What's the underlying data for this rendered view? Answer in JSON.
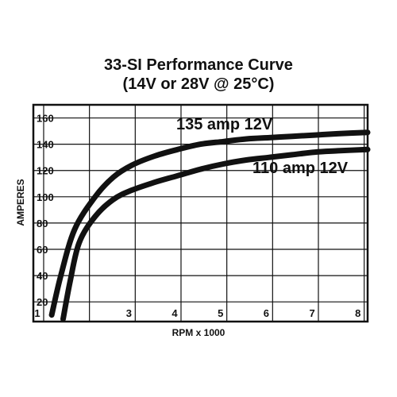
{
  "chart_data": {
    "type": "line",
    "title": "33-SI Performance Curve",
    "subtitle": "(14V or 28V @ 25°C)",
    "xlabel": "RPM x 1000",
    "ylabel": "AMPERES",
    "xlim": [
      0.85,
      8.15
    ],
    "ylim": [
      5,
      170
    ],
    "x_ticks": [
      1,
      3,
      4,
      5,
      6,
      7,
      8
    ],
    "y_ticks": [
      20,
      40,
      60,
      80,
      100,
      120,
      140,
      160
    ],
    "grid": true,
    "series_color": "#111111",
    "series": [
      {
        "name": "135 amp 12V",
        "points": [
          [
            1.25,
            10
          ],
          [
            1.45,
            40
          ],
          [
            1.75,
            75
          ],
          [
            2.2,
            100
          ],
          [
            2.6,
            115
          ],
          [
            3.0,
            124
          ],
          [
            3.5,
            131
          ],
          [
            4.0,
            136
          ],
          [
            4.5,
            140
          ],
          [
            5.0,
            142
          ],
          [
            5.5,
            144
          ],
          [
            6.0,
            145
          ],
          [
            6.5,
            146
          ],
          [
            7.0,
            147
          ],
          [
            7.5,
            148
          ],
          [
            8.15,
            149
          ]
        ]
      },
      {
        "name": "110 amp 12V",
        "points": [
          [
            1.5,
            7
          ],
          [
            1.65,
            35
          ],
          [
            1.85,
            65
          ],
          [
            2.2,
            85
          ],
          [
            2.6,
            98
          ],
          [
            3.0,
            105
          ],
          [
            3.5,
            111
          ],
          [
            4.0,
            116
          ],
          [
            4.5,
            121
          ],
          [
            5.0,
            125
          ],
          [
            5.5,
            128
          ],
          [
            6.0,
            130
          ],
          [
            6.5,
            132
          ],
          [
            7.0,
            134
          ],
          [
            7.5,
            135
          ],
          [
            8.15,
            136
          ]
        ]
      }
    ]
  }
}
